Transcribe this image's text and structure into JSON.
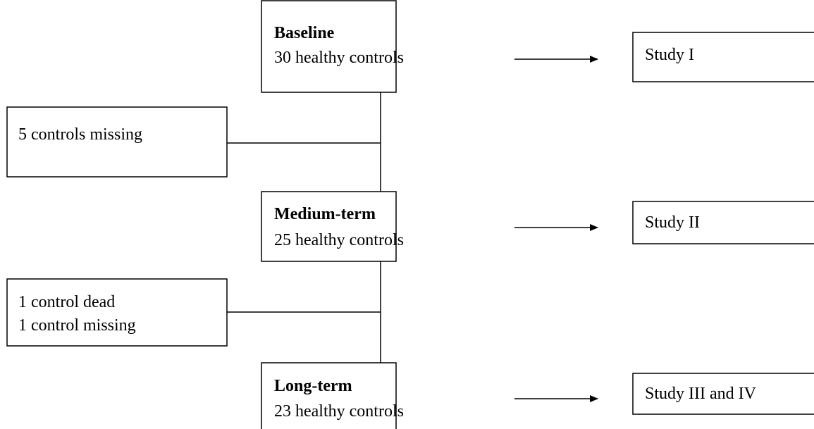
{
  "nodes": [
    {
      "title": "Baseline",
      "text": "30 healthy controls"
    },
    {
      "title": "Medium-term",
      "text": "25 healthy controls"
    },
    {
      "title": "Long-term",
      "text": "23 healthy controls"
    }
  ],
  "exclusions": [
    {
      "lines": [
        "5 controls missing"
      ]
    },
    {
      "lines": [
        "1 control dead",
        "1 control missing"
      ]
    }
  ],
  "studies": [
    "Study I",
    "Study II",
    "Study III and IV"
  ]
}
